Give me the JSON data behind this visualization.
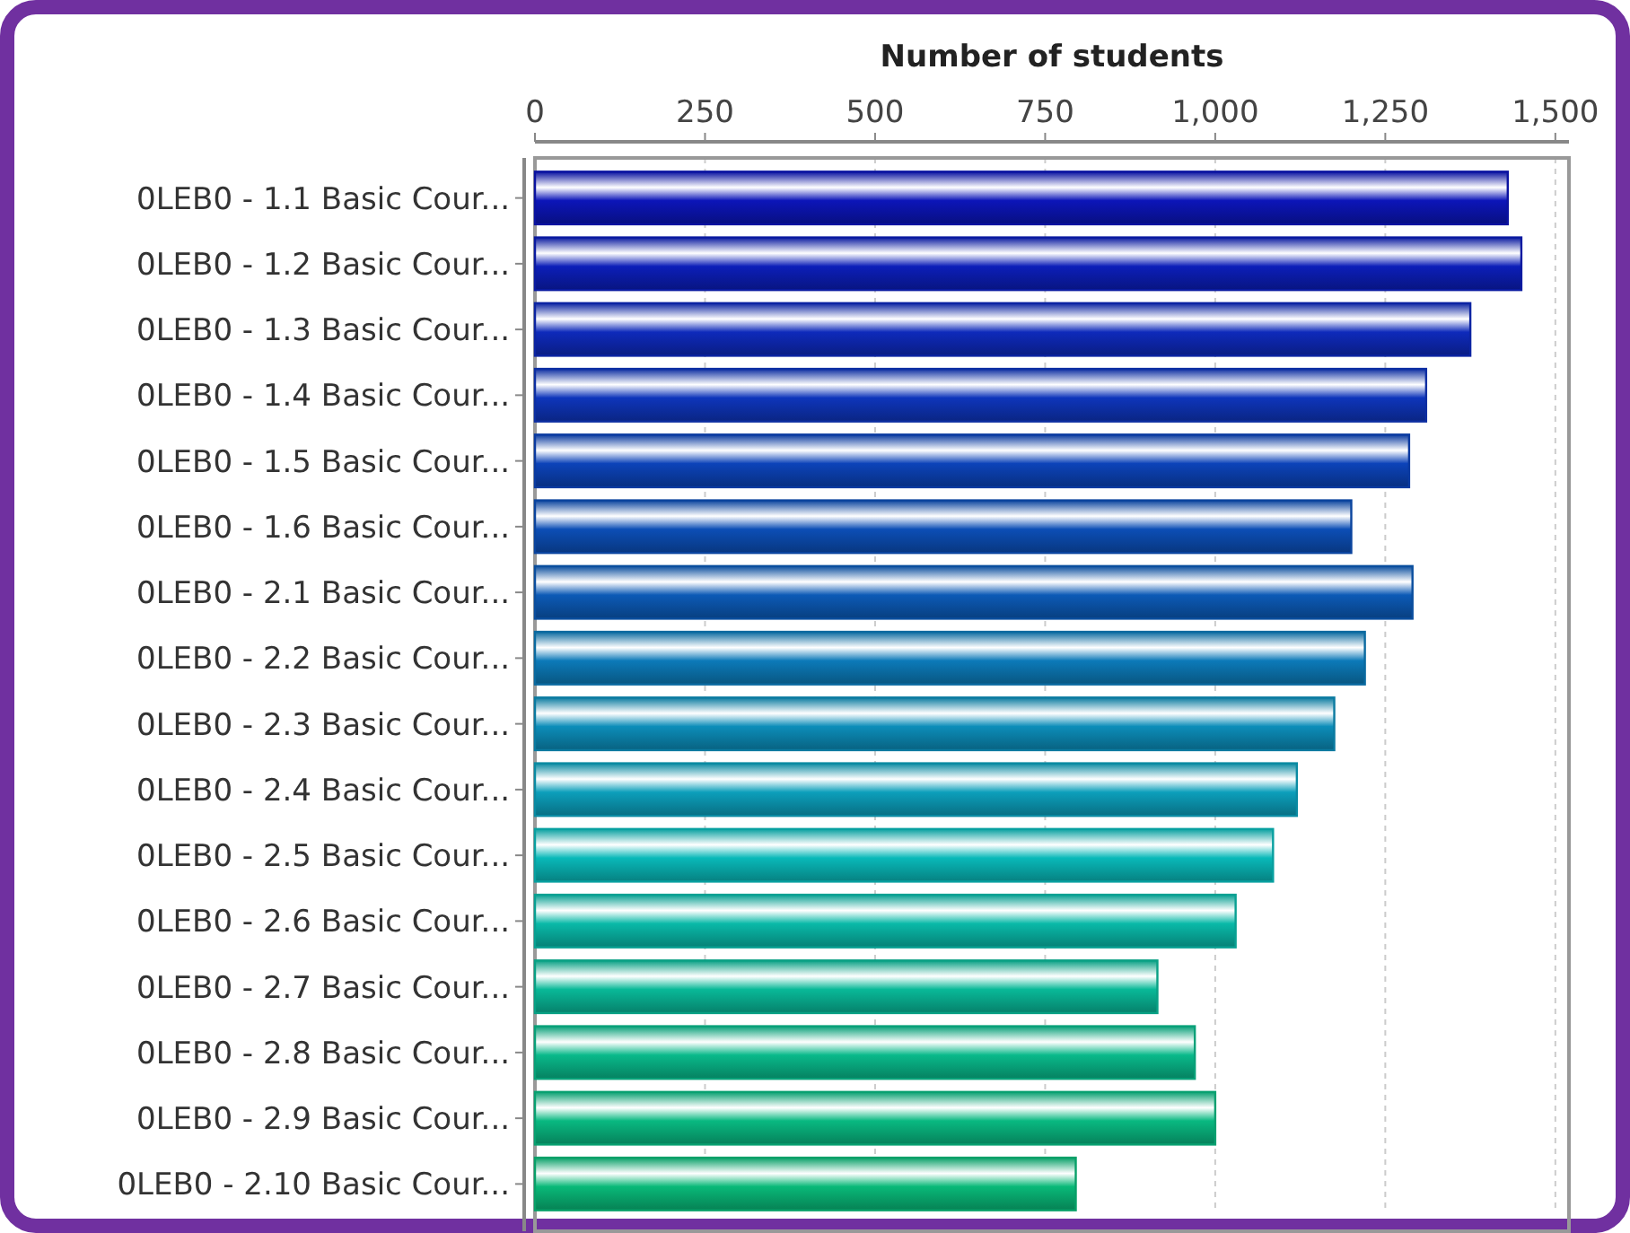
{
  "chart_data": {
    "type": "bar",
    "orientation": "horizontal",
    "xlabel": "Number of students",
    "categories": [
      "0LEB0 - 1.1 Basic Cour...",
      "0LEB0 - 1.2 Basic Cour...",
      "0LEB0 - 1.3 Basic Cour...",
      "0LEB0 - 1.4 Basic Cour...",
      "0LEB0 - 1.5 Basic Cour...",
      "0LEB0 - 1.6 Basic Cour...",
      "0LEB0 - 2.1 Basic Cour...",
      "0LEB0 - 2.2 Basic Cour...",
      "0LEB0 - 2.3 Basic Cour...",
      "0LEB0 - 2.4 Basic Cour...",
      "0LEB0 - 2.5 Basic Cour...",
      "0LEB0 - 2.6 Basic Cour...",
      "0LEB0 - 2.7 Basic Cour...",
      "0LEB0 - 2.8 Basic Cour...",
      "0LEB0 - 2.9 Basic Cour...",
      "0LEB0 - 2.10 Basic Cour..."
    ],
    "values": [
      1430,
      1450,
      1375,
      1310,
      1285,
      1200,
      1290,
      1220,
      1175,
      1120,
      1085,
      1030,
      915,
      970,
      1000,
      795
    ],
    "colors": [
      "#0a12a0",
      "#0a1aa0",
      "#0c24a2",
      "#0c2ea2",
      "#0a3aa0",
      "#0a449e",
      "#0a4e9e",
      "#0a6aa0",
      "#0a7aa0",
      "#0a8aa2",
      "#08a0a0",
      "#08a092",
      "#08a084",
      "#08a078",
      "#08a070",
      "#08a068"
    ],
    "xlim": [
      0,
      1520
    ],
    "xticks": [
      {
        "value": 0,
        "label": "0"
      },
      {
        "value": 250,
        "label": "250"
      },
      {
        "value": 500,
        "label": "500"
      },
      {
        "value": 750,
        "label": "750"
      },
      {
        "value": 1000,
        "label": "1,000"
      },
      {
        "value": 1250,
        "label": "1,250"
      },
      {
        "value": 1500,
        "label": "1,500"
      }
    ],
    "grid": "x"
  }
}
